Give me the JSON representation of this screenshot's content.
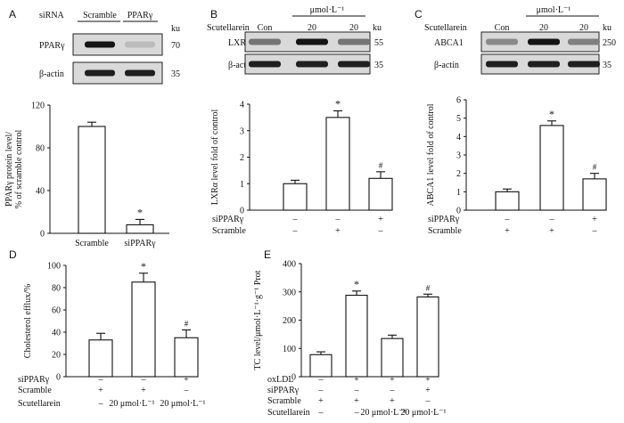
{
  "figure": {
    "panels": [
      {
        "letter": "A"
      },
      {
        "letter": "B"
      },
      {
        "letter": "C"
      },
      {
        "letter": "D"
      },
      {
        "letter": "E"
      }
    ],
    "blots": {
      "A": {
        "row_label_head": "siRNA",
        "lanes": [
          "Scramble",
          "PPARγ"
        ],
        "bands": [
          {
            "name": "PPARγ",
            "ku": "70",
            "intensity": [
              1.0,
              0.22
            ]
          },
          {
            "name": "β-actin",
            "ku": "35",
            "intensity": [
              0.95,
              0.95
            ]
          }
        ]
      },
      "B": {
        "row_label_head": "Scutellarein",
        "unit": "μmol·L⁻¹",
        "lanes": [
          "Con",
          "20",
          "20"
        ],
        "ku_head": "ku",
        "bands": [
          {
            "name": "LXRα",
            "ku": "55",
            "intensity": [
              0.55,
              1.0,
              0.55
            ]
          },
          {
            "name": "β-actin",
            "ku": "35",
            "intensity": [
              0.95,
              0.95,
              0.95
            ]
          }
        ]
      },
      "C": {
        "row_label_head": "Scutellarein",
        "unit": "μmol·L⁻¹",
        "lanes": [
          "Con",
          "20",
          "20"
        ],
        "ku_head": "ku",
        "bands": [
          {
            "name": "ABCA1",
            "ku": "250",
            "intensity": [
              0.45,
              1.0,
              0.5
            ]
          },
          {
            "name": "β-actin",
            "ku": "35",
            "intensity": [
              0.95,
              0.95,
              0.95
            ]
          }
        ]
      },
      "A_ku_head": "ku"
    }
  },
  "chart_data": [
    {
      "panel": "A",
      "type": "bar",
      "ylabel": "PPARγ protein level/ % of scramble control",
      "categories": [
        "Scramble",
        "siPPARγ"
      ],
      "values": [
        100,
        8
      ],
      "errors": [
        4,
        5
      ],
      "ylim": [
        0,
        120
      ],
      "yticks": [
        0,
        40,
        80,
        120
      ],
      "significance": [
        "",
        "*"
      ]
    },
    {
      "panel": "B",
      "type": "bar",
      "ylabel": "LXRα level fold of control",
      "categories": [
        "1",
        "2",
        "3"
      ],
      "values": [
        1.0,
        3.5,
        1.2
      ],
      "errors": [
        0.13,
        0.25,
        0.25
      ],
      "ylim": [
        0,
        4
      ],
      "yticks": [
        0,
        1,
        2,
        3,
        4
      ],
      "significance": [
        "",
        "*",
        "#"
      ],
      "conditions": [
        {
          "name": "siPPARγ",
          "marks": [
            "–",
            "–",
            "+"
          ]
        },
        {
          "name": "Scramble",
          "marks": [
            "–",
            "+",
            "–"
          ]
        }
      ]
    },
    {
      "panel": "C",
      "type": "bar",
      "ylabel": "ABCA1 level fold of control",
      "categories": [
        "1",
        "2",
        "3"
      ],
      "values": [
        1.0,
        4.6,
        1.7
      ],
      "errors": [
        0.15,
        0.25,
        0.3
      ],
      "ylim": [
        0,
        6
      ],
      "yticks": [
        0,
        1,
        2,
        3,
        4,
        5,
        6
      ],
      "significance": [
        "",
        "*",
        "#"
      ],
      "conditions": [
        {
          "name": "siPPARγ",
          "marks": [
            "–",
            "–",
            "+"
          ]
        },
        {
          "name": "Scramble",
          "marks": [
            "+",
            "+",
            "–"
          ]
        }
      ]
    },
    {
      "panel": "D",
      "type": "bar",
      "ylabel": "Cholesterol efflux/%",
      "categories": [
        "1",
        "2",
        "3"
      ],
      "values": [
        33,
        85,
        35
      ],
      "errors": [
        6,
        8,
        7
      ],
      "ylim": [
        0,
        100
      ],
      "yticks": [
        0,
        20,
        40,
        60,
        80,
        100
      ],
      "significance": [
        "",
        "*",
        "#"
      ],
      "conditions": [
        {
          "name": "siPPARγ",
          "marks": [
            "–",
            "–",
            "+"
          ]
        },
        {
          "name": "Scramble",
          "marks": [
            "+",
            "+",
            "–"
          ]
        },
        {
          "name": "Scutellarein",
          "marks": [
            "–",
            "20 μmol·L⁻¹",
            "20 μmol·L⁻¹"
          ]
        }
      ]
    },
    {
      "panel": "E",
      "type": "bar",
      "ylabel": "TC level/μmol·L⁻¹·g⁻¹ Prot",
      "categories": [
        "1",
        "2",
        "3",
        "4"
      ],
      "values": [
        78,
        288,
        135,
        282
      ],
      "errors": [
        10,
        15,
        12,
        10
      ],
      "ylim": [
        0,
        400
      ],
      "yticks": [
        0,
        100,
        200,
        300,
        400
      ],
      "significance": [
        "",
        "*",
        "",
        "#"
      ],
      "conditions": [
        {
          "name": "oxLDL",
          "marks": [
            "–",
            "+",
            "+",
            "+"
          ]
        },
        {
          "name": "siPPARγ",
          "marks": [
            "–",
            "–",
            "–",
            "+"
          ]
        },
        {
          "name": "Scramble",
          "marks": [
            "+",
            "+",
            "+",
            "–"
          ]
        },
        {
          "name": "Scutellarein",
          "marks": [
            "–",
            "–",
            "20 μmol·L⁻¹",
            "20 μmol·L⁻¹"
          ]
        }
      ]
    }
  ]
}
